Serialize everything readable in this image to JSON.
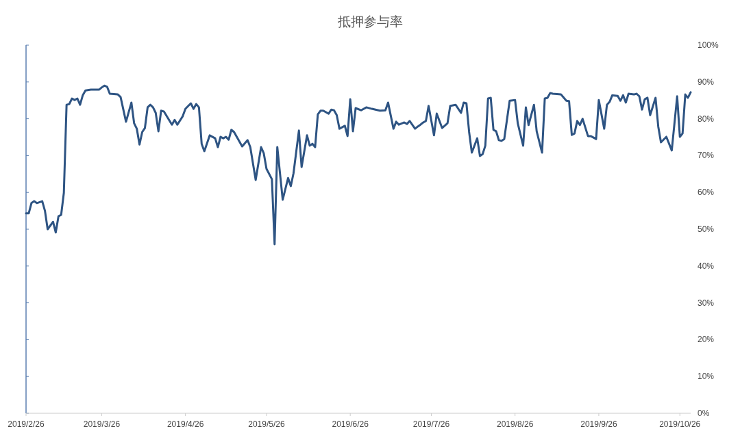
{
  "chart_data": {
    "type": "line",
    "title": "抵押参与率",
    "x": [
      "2019-02-26",
      "2019-02-27",
      "2019-02-28",
      "2019-03-01",
      "2019-03-02",
      "2019-03-04",
      "2019-03-05",
      "2019-03-06",
      "2019-03-08",
      "2019-03-09",
      "2019-03-10",
      "2019-03-11",
      "2019-03-12",
      "2019-03-13",
      "2019-03-14",
      "2019-03-15",
      "2019-03-16",
      "2019-03-17",
      "2019-03-18",
      "2019-03-19",
      "2019-03-20",
      "2019-03-22",
      "2019-03-25",
      "2019-03-26",
      "2019-03-27",
      "2019-03-28",
      "2019-03-29",
      "2019-04-01",
      "2019-04-02",
      "2019-04-04",
      "2019-04-06",
      "2019-04-07",
      "2019-04-08",
      "2019-04-09",
      "2019-04-10",
      "2019-04-11",
      "2019-04-12",
      "2019-04-13",
      "2019-04-14",
      "2019-04-15",
      "2019-04-16",
      "2019-04-17",
      "2019-04-18",
      "2019-04-21",
      "2019-04-22",
      "2019-04-23",
      "2019-04-25",
      "2019-04-26",
      "2019-04-28",
      "2019-04-29",
      "2019-04-30",
      "2019-05-01",
      "2019-05-02",
      "2019-05-03",
      "2019-05-05",
      "2019-05-07",
      "2019-05-08",
      "2019-05-09",
      "2019-05-10",
      "2019-05-11",
      "2019-05-12",
      "2019-05-13",
      "2019-05-14",
      "2019-05-17",
      "2019-05-19",
      "2019-05-20",
      "2019-05-22",
      "2019-05-24",
      "2019-05-25",
      "2019-05-26",
      "2019-05-28",
      "2019-05-29",
      "2019-05-30",
      "2019-06-01",
      "2019-06-03",
      "2019-06-04",
      "2019-06-05",
      "2019-06-07",
      "2019-06-08",
      "2019-06-10",
      "2019-06-11",
      "2019-06-12",
      "2019-06-13",
      "2019-06-14",
      "2019-06-15",
      "2019-06-16",
      "2019-06-18",
      "2019-06-19",
      "2019-06-20",
      "2019-06-21",
      "2019-06-22",
      "2019-06-24",
      "2019-06-25",
      "2019-06-26",
      "2019-06-27",
      "2019-06-28",
      "2019-06-30",
      "2019-07-02",
      "2019-07-04",
      "2019-07-07",
      "2019-07-09",
      "2019-07-10",
      "2019-07-12",
      "2019-07-13",
      "2019-07-14",
      "2019-07-16",
      "2019-07-17",
      "2019-07-18",
      "2019-07-20",
      "2019-07-21",
      "2019-07-22",
      "2019-07-23",
      "2019-07-24",
      "2019-07-25",
      "2019-07-27",
      "2019-07-28",
      "2019-07-30",
      "2019-08-01",
      "2019-08-02",
      "2019-08-04",
      "2019-08-06",
      "2019-08-07",
      "2019-08-08",
      "2019-08-09",
      "2019-08-10",
      "2019-08-12",
      "2019-08-13",
      "2019-08-14",
      "2019-08-15",
      "2019-08-16",
      "2019-08-17",
      "2019-08-18",
      "2019-08-19",
      "2019-08-20",
      "2019-08-21",
      "2019-08-22",
      "2019-08-24",
      "2019-08-26",
      "2019-08-27",
      "2019-08-29",
      "2019-08-30",
      "2019-08-31",
      "2019-09-02",
      "2019-09-03",
      "2019-09-05",
      "2019-09-06",
      "2019-09-07",
      "2019-09-08",
      "2019-09-09",
      "2019-09-12",
      "2019-09-14",
      "2019-09-15",
      "2019-09-16",
      "2019-09-17",
      "2019-09-18",
      "2019-09-19",
      "2019-09-20",
      "2019-09-22",
      "2019-09-23",
      "2019-09-25",
      "2019-09-26",
      "2019-09-28",
      "2019-09-29",
      "2019-09-30",
      "2019-10-01",
      "2019-10-03",
      "2019-10-04",
      "2019-10-05",
      "2019-10-06",
      "2019-10-07",
      "2019-10-09",
      "2019-10-10",
      "2019-10-11",
      "2019-10-12",
      "2019-10-13",
      "2019-10-14",
      "2019-10-15",
      "2019-10-17",
      "2019-10-18",
      "2019-10-19",
      "2019-10-21",
      "2019-10-23",
      "2019-10-25",
      "2019-10-26",
      "2019-10-27",
      "2019-10-28",
      "2019-10-29",
      "2019-10-30"
    ],
    "series": [
      {
        "color": "#2e5483",
        "values": [
          54.3,
          54.3,
          57.1,
          57.6,
          57.1,
          57.6,
          55,
          50,
          52,
          49.1,
          53.5,
          53.9,
          59.9,
          83.8,
          84,
          85.5,
          85.1,
          85.5,
          83.8,
          86.4,
          87.7,
          87.9,
          87.9,
          88.5,
          89,
          88.7,
          86.8,
          86.6,
          85.9,
          79.2,
          84.4,
          78.8,
          77.3,
          73,
          76.4,
          77.5,
          83.1,
          83.8,
          83.1,
          81.6,
          76.6,
          82.2,
          82,
          78.4,
          79.7,
          78.4,
          80.7,
          82.7,
          84.2,
          82.7,
          84,
          83.1,
          73.2,
          71.2,
          75.5,
          74.7,
          72.3,
          75.1,
          74.7,
          75.1,
          74.3,
          77,
          76.4,
          72.5,
          74.2,
          72.3,
          63.4,
          72.3,
          70.6,
          66.4,
          63.6,
          45.9,
          72.3,
          58,
          63.9,
          61.7,
          65.2,
          76.8,
          66.9,
          75.5,
          72.7,
          73.2,
          72.3,
          81.2,
          82.2,
          82.2,
          81.4,
          82.5,
          82.3,
          81,
          77.3,
          78.1,
          75.3,
          85.3,
          76.6,
          82.9,
          82.3,
          83.1,
          82.7,
          82.2,
          82.3,
          84.4,
          77.3,
          79.2,
          78.4,
          79,
          78.6,
          79.4,
          77.3,
          77.9,
          78.4,
          79,
          79.4,
          83.5,
          75.5,
          81.4,
          77.5,
          78.8,
          83.5,
          83.8,
          81.6,
          84.4,
          84.2,
          76.4,
          70.8,
          74.7,
          69.9,
          70.4,
          72.7,
          85.5,
          85.7,
          77,
          76.6,
          74.2,
          74,
          74.5,
          84.9,
          85.1,
          78.8,
          72.7,
          83.1,
          78.3,
          83.8,
          76.6,
          70.8,
          85.5,
          85.7,
          87,
          86.8,
          86.6,
          84.9,
          84.8,
          75.6,
          76,
          79.4,
          78.3,
          80,
          75.3,
          75.3,
          74.5,
          85.1,
          77.3,
          83.8,
          84.6,
          86.4,
          86.2,
          84.9,
          86.4,
          84.4,
          86.8,
          86.6,
          86.8,
          86.1,
          82.5,
          85.3,
          85.7,
          81,
          85.7,
          77.9,
          73.6,
          75.1,
          71.4,
          86.1,
          75.1,
          76,
          86.6,
          85.7,
          87.2
        ]
      }
    ],
    "xlim": [
      "2019-02-26",
      "2019-10-30"
    ],
    "xticks": [
      {
        "value": "2019-02-26",
        "label": "2019/2/26"
      },
      {
        "value": "2019-03-26",
        "label": "2019/3/26"
      },
      {
        "value": "2019-04-26",
        "label": "2019/4/26"
      },
      {
        "value": "2019-05-26",
        "label": "2019/5/26"
      },
      {
        "value": "2019-06-26",
        "label": "2019/6/26"
      },
      {
        "value": "2019-07-26",
        "label": "2019/7/26"
      },
      {
        "value": "2019-08-26",
        "label": "2019/8/26"
      },
      {
        "value": "2019-09-26",
        "label": "2019/9/26"
      },
      {
        "value": "2019-10-26",
        "label": "2019/10/26"
      }
    ],
    "ylim": [
      0,
      100
    ],
    "yticks": [
      {
        "value": 0,
        "label": "0%"
      },
      {
        "value": 10,
        "label": "10%"
      },
      {
        "value": 20,
        "label": "20%"
      },
      {
        "value": 30,
        "label": "30%"
      },
      {
        "value": 40,
        "label": "40%"
      },
      {
        "value": 50,
        "label": "50%"
      },
      {
        "value": 60,
        "label": "60%"
      },
      {
        "value": 70,
        "label": "70%"
      },
      {
        "value": 80,
        "label": "80%"
      },
      {
        "value": 90,
        "label": "90%"
      },
      {
        "value": 100,
        "label": "100%"
      }
    ],
    "grid": false,
    "marker": "none",
    "line_style": "solid"
  }
}
